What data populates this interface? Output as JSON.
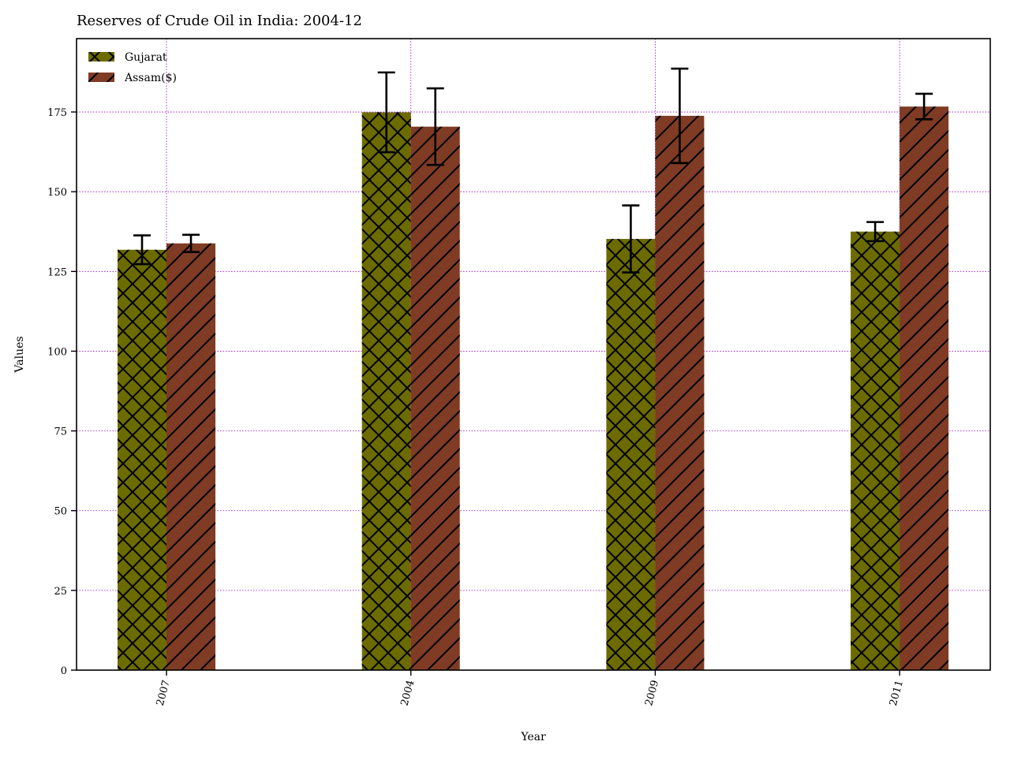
{
  "chart_data": {
    "type": "bar",
    "title": "Reserves of Crude Oil in India: 2004-12",
    "xlabel": "Year",
    "ylabel": "Values",
    "categories": [
      "2007",
      "2004",
      "2009",
      "2011"
    ],
    "series": [
      {
        "name": "Gujarat",
        "values": [
          131.8,
          174.9,
          135.2,
          137.5
        ],
        "errors": [
          4.5,
          12.5,
          10.5,
          3.0
        ],
        "color": "#6b6b00",
        "hatch": "crosshatch"
      },
      {
        "name": "Assam($)",
        "values": [
          133.8,
          170.4,
          173.8,
          176.7
        ],
        "errors": [
          2.7,
          12.0,
          14.8,
          4.0
        ],
        "color": "#7f3b24",
        "hatch": "diagonal"
      }
    ],
    "ylim": [
      0,
      198
    ],
    "yticks": [
      0,
      25,
      50,
      75,
      100,
      125,
      150,
      175
    ],
    "grid": true,
    "legend_position": "top-left"
  }
}
